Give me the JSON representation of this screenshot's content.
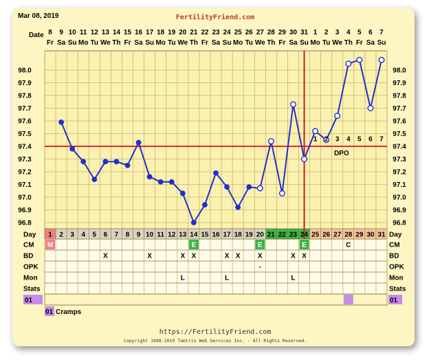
{
  "header": {
    "date": "Mar 08, 2019",
    "site": "FertilityFriend.com"
  },
  "footer": {
    "url": "https://FertilityFriend.com",
    "copyright": "Copyright 1998-2019 Tamtris Web Services Inc. - All Rights Reserved."
  },
  "row_labels": {
    "date": "Date",
    "day": "Day",
    "cm": "CM",
    "bd": "BD",
    "opk": "OPK",
    "mon": "Mon",
    "stats": "Stats"
  },
  "dates": [
    "8",
    "9",
    "10",
    "11",
    "12",
    "13",
    "14",
    "15",
    "16",
    "17",
    "18",
    "19",
    "20",
    "21",
    "22",
    "23",
    "24",
    "25",
    "26",
    "27",
    "28",
    "29",
    "30",
    "31",
    "1",
    "2",
    "3",
    "4",
    "5",
    "6",
    "7"
  ],
  "weekdays": [
    "Fr",
    "Sa",
    "Su",
    "Mo",
    "Tu",
    "We",
    "Th",
    "Fr",
    "Sa",
    "Su",
    "Mo",
    "Tu",
    "We",
    "Th",
    "Fr",
    "Sa",
    "Su",
    "Mo",
    "Tu",
    "We",
    "Th",
    "Fr",
    "Sa",
    "Su",
    "Mo",
    "Tu",
    "We",
    "Th",
    "Fr",
    "Sa",
    "Su"
  ],
  "days": [
    "1",
    "2",
    "3",
    "4",
    "5",
    "6",
    "7",
    "8",
    "9",
    "10",
    "11",
    "12",
    "13",
    "14",
    "15",
    "16",
    "17",
    "18",
    "19",
    "20",
    "21",
    "22",
    "23",
    "24",
    "25",
    "26",
    "27",
    "28",
    "29",
    "30",
    "31"
  ],
  "cm": [
    "M",
    "",
    "",
    "",
    "",
    "",
    "",
    "",
    "",
    "",
    "",
    "",
    "",
    "E",
    "",
    "",
    "",
    "",
    "",
    "E",
    "",
    "",
    "",
    "E",
    "",
    "",
    "",
    "C",
    "",
    "",
    ""
  ],
  "bd": [
    "",
    "",
    "",
    "",
    "",
    "X",
    "",
    "",
    "",
    "X",
    "",
    "",
    "X",
    "X",
    "",
    "",
    "X",
    "X",
    "",
    "X",
    "",
    "",
    "X",
    "X",
    "",
    "",
    "",
    "",
    "",
    "",
    ""
  ],
  "opk": [
    "",
    "",
    "",
    "",
    "",
    "",
    "",
    "",
    "",
    "",
    "",
    "",
    "",
    "",
    "",
    "",
    "",
    "",
    "",
    "-",
    "",
    "",
    "",
    "",
    "",
    "",
    "",
    "",
    "",
    "",
    ""
  ],
  "mon": [
    "",
    "",
    "",
    "",
    "",
    "",
    "",
    "",
    "",
    "",
    "",
    "",
    "L",
    "",
    "",
    "",
    "L",
    "",
    "",
    "",
    "",
    "",
    "L",
    "",
    "",
    "",
    "",
    "",
    "",
    "",
    ""
  ],
  "stats_label": "01",
  "note": {
    "code": "01",
    "text": "Cramps"
  },
  "dpo": {
    "label": "DPO",
    "numbers": [
      "1",
      "2",
      "3",
      "4",
      "5",
      "6",
      "7"
    ]
  },
  "colors": {
    "line": "#1f2fd0",
    "coverline": "#e8262a",
    "ovulation": "#cc1a1a",
    "chart_bg": "#fbf1b0",
    "grid": "#c9b36c",
    "menses": "#f08080",
    "fertile": "#3cb34a",
    "luteal": "#f7c49a",
    "stats": "#c78be8"
  },
  "chart_data": {
    "type": "line",
    "title": "",
    "xlabel": "",
    "ylabel": "",
    "ylim": [
      96.7,
      98.1
    ],
    "y_ticks": [
      "98.0",
      "97.9",
      "97.8",
      "97.7",
      "97.6",
      "97.5",
      "97.4",
      "97.3",
      "97.2",
      "97.1",
      "97.0",
      "96.9",
      "96.8"
    ],
    "x": [
      1,
      2,
      3,
      4,
      5,
      6,
      7,
      8,
      9,
      10,
      11,
      12,
      13,
      14,
      15,
      16,
      17,
      18,
      19,
      20,
      21,
      22,
      23,
      24,
      25,
      26,
      27,
      28,
      29,
      30,
      31
    ],
    "temps": [
      null,
      97.59,
      97.38,
      97.28,
      97.14,
      97.28,
      97.28,
      97.25,
      97.43,
      97.16,
      97.12,
      97.12,
      97.03,
      96.8,
      96.94,
      97.19,
      97.08,
      96.92,
      97.08,
      97.07,
      97.44,
      97.03,
      97.73,
      97.3,
      97.52,
      97.45,
      97.64,
      98.05,
      98.08,
      97.7,
      98.08
    ],
    "open_points": [
      20,
      21,
      22,
      23,
      24,
      25,
      26,
      27,
      28,
      29,
      30,
      31
    ],
    "coverline": 97.4,
    "ovulation_day": 24,
    "grid": true,
    "legend": "none"
  }
}
